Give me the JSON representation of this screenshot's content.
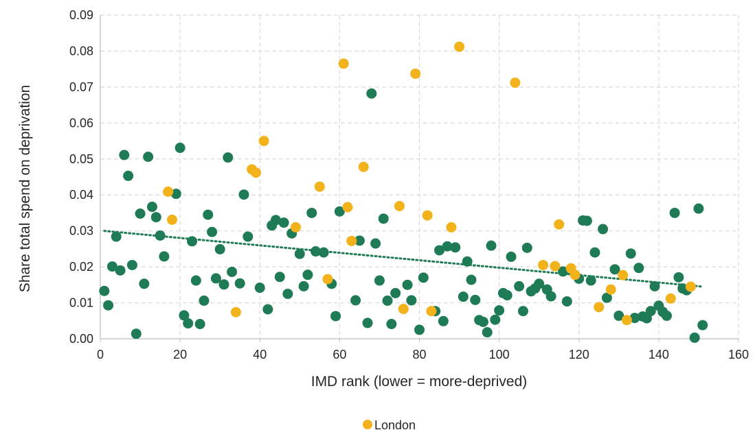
{
  "chart_data": {
    "type": "scatter",
    "xlabel": "IMD rank (lower = more-deprived)",
    "ylabel": "Share total spend on deprivation",
    "xlim": [
      0,
      160
    ],
    "ylim": [
      0,
      0.09
    ],
    "x_ticks": [
      "0",
      "20",
      "40",
      "60",
      "80",
      "100",
      "120",
      "140",
      "160"
    ],
    "y_ticks": [
      "0.00",
      "0.01",
      "0.02",
      "0.03",
      "0.04",
      "0.05",
      "0.06",
      "0.07",
      "0.08",
      "0.09"
    ],
    "grid": true,
    "legend_position": "bottom",
    "legend": [
      {
        "label": "London",
        "color": "#f2b21c"
      }
    ],
    "trendline": {
      "type": "linear",
      "style": "dotted",
      "color": "#1e7b55",
      "from": [
        1,
        0.03
      ],
      "to": [
        151,
        0.0145
      ]
    },
    "series": [
      {
        "name": "London",
        "color": "#f2b21c",
        "points": [
          [
            17,
            0.0409
          ],
          [
            18,
            0.0331
          ],
          [
            34,
            0.0074
          ],
          [
            38,
            0.0471
          ],
          [
            39,
            0.0462
          ],
          [
            41,
            0.055
          ],
          [
            49,
            0.031
          ],
          [
            55,
            0.0423
          ],
          [
            57,
            0.0166
          ],
          [
            61,
            0.0765
          ],
          [
            62,
            0.0366
          ],
          [
            63,
            0.0272
          ],
          [
            66,
            0.0478
          ],
          [
            75,
            0.0369
          ],
          [
            76,
            0.0083
          ],
          [
            79,
            0.0737
          ],
          [
            82,
            0.0343
          ],
          [
            83,
            0.0077
          ],
          [
            88,
            0.031
          ],
          [
            90,
            0.0812
          ],
          [
            104,
            0.0712
          ],
          [
            111,
            0.0205
          ],
          [
            114,
            0.0202
          ],
          [
            115,
            0.0318
          ],
          [
            118,
            0.0196
          ],
          [
            119,
            0.0178
          ],
          [
            125,
            0.0088
          ],
          [
            128,
            0.0137
          ],
          [
            131,
            0.0177
          ],
          [
            132,
            0.0052
          ],
          [
            143,
            0.0112
          ],
          [
            148,
            0.0145
          ]
        ]
      },
      {
        "name": "",
        "color": "#1e7b55",
        "points": [
          [
            1,
            0.0133
          ],
          [
            2,
            0.0093
          ],
          [
            3,
            0.0201
          ],
          [
            4,
            0.0284
          ],
          [
            5,
            0.019
          ],
          [
            6,
            0.0511
          ],
          [
            7,
            0.0453
          ],
          [
            8,
            0.0205
          ],
          [
            9,
            0.0014
          ],
          [
            10,
            0.0348
          ],
          [
            11,
            0.0153
          ],
          [
            12,
            0.0506
          ],
          [
            13,
            0.0367
          ],
          [
            14,
            0.0338
          ],
          [
            15,
            0.0287
          ],
          [
            16,
            0.0229
          ],
          [
            19,
            0.0403
          ],
          [
            20,
            0.0531
          ],
          [
            21,
            0.0065
          ],
          [
            22,
            0.0043
          ],
          [
            23,
            0.0271
          ],
          [
            24,
            0.0162
          ],
          [
            25,
            0.0041
          ],
          [
            26,
            0.0106
          ],
          [
            27,
            0.0345
          ],
          [
            28,
            0.0297
          ],
          [
            29,
            0.0168
          ],
          [
            30,
            0.0249
          ],
          [
            31,
            0.0151
          ],
          [
            32,
            0.0504
          ],
          [
            33,
            0.0186
          ],
          [
            35,
            0.0154
          ],
          [
            36,
            0.0401
          ],
          [
            37,
            0.0284
          ],
          [
            40,
            0.0142
          ],
          [
            42,
            0.0082
          ],
          [
            43,
            0.0315
          ],
          [
            44,
            0.033
          ],
          [
            45,
            0.0172
          ],
          [
            46,
            0.0323
          ],
          [
            47,
            0.0125
          ],
          [
            48,
            0.0293
          ],
          [
            50,
            0.0236
          ],
          [
            51,
            0.0146
          ],
          [
            52,
            0.0178
          ],
          [
            53,
            0.035
          ],
          [
            54,
            0.0243
          ],
          [
            56,
            0.024
          ],
          [
            58,
            0.0153
          ],
          [
            59,
            0.0063
          ],
          [
            60,
            0.0354
          ],
          [
            64,
            0.0107
          ],
          [
            65,
            0.0273
          ],
          [
            67,
            0.0044
          ],
          [
            68,
            0.0682
          ],
          [
            69,
            0.0265
          ],
          [
            70,
            0.0162
          ],
          [
            71,
            0.0334
          ],
          [
            72,
            0.0106
          ],
          [
            73,
            0.0041
          ],
          [
            74,
            0.0127
          ],
          [
            77,
            0.015
          ],
          [
            78,
            0.0107
          ],
          [
            80,
            0.0025
          ],
          [
            81,
            0.017
          ],
          [
            84,
            0.0077
          ],
          [
            85,
            0.0246
          ],
          [
            86,
            0.0049
          ],
          [
            87,
            0.0257
          ],
          [
            89,
            0.0254
          ],
          [
            91,
            0.0117
          ],
          [
            92,
            0.0215
          ],
          [
            93,
            0.0164
          ],
          [
            94,
            0.0108
          ],
          [
            95,
            0.0052
          ],
          [
            96,
            0.0047
          ],
          [
            97,
            0.0018
          ],
          [
            98,
            0.0259
          ],
          [
            99,
            0.0053
          ],
          [
            100,
            0.0079
          ],
          [
            101,
            0.0127
          ],
          [
            102,
            0.0121
          ],
          [
            103,
            0.0228
          ],
          [
            105,
            0.0146
          ],
          [
            106,
            0.0077
          ],
          [
            107,
            0.0253
          ],
          [
            108,
            0.0132
          ],
          [
            109,
            0.014
          ],
          [
            110,
            0.0153
          ],
          [
            112,
            0.0137
          ],
          [
            113,
            0.0118
          ],
          [
            116,
            0.0187
          ],
          [
            117,
            0.0104
          ],
          [
            120,
            0.0167
          ],
          [
            121,
            0.0329
          ],
          [
            122,
            0.0328
          ],
          [
            123,
            0.0162
          ],
          [
            124,
            0.024
          ],
          [
            126,
            0.0305
          ],
          [
            127,
            0.0114
          ],
          [
            129,
            0.0193
          ],
          [
            130,
            0.0064
          ],
          [
            133,
            0.0237
          ],
          [
            134,
            0.0058
          ],
          [
            135,
            0.0197
          ],
          [
            136,
            0.0062
          ],
          [
            137,
            0.0057
          ],
          [
            138,
            0.0077
          ],
          [
            139,
            0.0146
          ],
          [
            140,
            0.0092
          ],
          [
            141,
            0.0075
          ],
          [
            142,
            0.0064
          ],
          [
            144,
            0.035
          ],
          [
            145,
            0.0171
          ],
          [
            146,
            0.014
          ],
          [
            147,
            0.0135
          ],
          [
            149,
            0.0003
          ],
          [
            150,
            0.0362
          ],
          [
            151,
            0.0038
          ]
        ]
      }
    ]
  }
}
